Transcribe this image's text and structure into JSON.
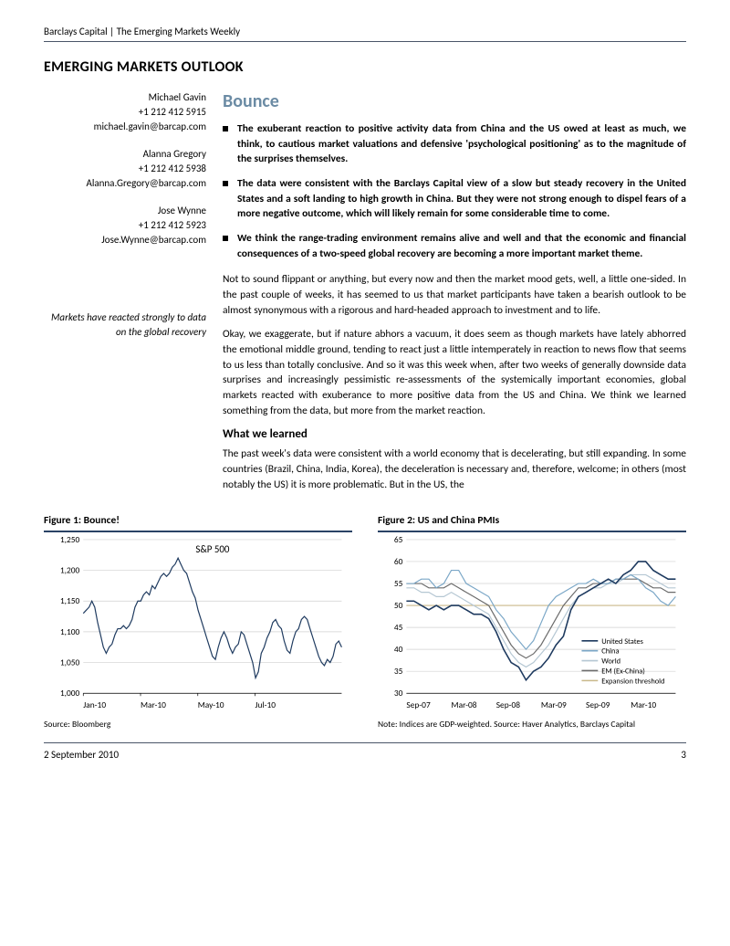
{
  "header": {
    "doc_title": "Barclays Capital | The Emerging Markets Weekly"
  },
  "section": {
    "title": "EMERGING MARKETS OUTLOOK",
    "subtitle": "Bounce"
  },
  "authors": [
    {
      "name": "Michael Gavin",
      "phone": "+1 212 412 5915",
      "email": "michael.gavin@barcap.com"
    },
    {
      "name": "Alanna Gregory",
      "phone": "+1 212 412 5938",
      "email": "Alanna.Gregory@barcap.com"
    },
    {
      "name": "Jose Wynne",
      "phone": "+1 212 412 5923",
      "email": "Jose.Wynne@barcap.com"
    }
  ],
  "side_note": "Markets have reacted strongly to data on the global recovery",
  "bullets": [
    "The exuberant reaction to positive activity data from China and the US owed at least as much, we think, to cautious market valuations and defensive 'psychological positioning' as to the magnitude of the surprises themselves.",
    "The data were consistent with the Barclays Capital view of a slow but steady recovery in the United States and a soft landing to high growth in China. But they were not strong enough to dispel fears of a more negative outcome, which will likely remain for some considerable time to come.",
    "We think the range-trading environment remains alive and well and that the economic and financial consequences of a two-speed global recovery are becoming a more important market theme."
  ],
  "body": {
    "p1": "Not to sound flippant or anything, but every now and then the market mood gets, well, a little one-sided. In the past couple of weeks, it has seemed to us that market participants have taken a bearish outlook to be almost synonymous with a rigorous and hard-headed approach to investment and to life.",
    "p2": "Okay, we exaggerate, but if nature abhors a vacuum, it does seem as though markets have lately abhorred the emotional middle ground, tending to react just a little intemperately in reaction to news flow that seems to us less than totally conclusive. And so it was this week when, after two weeks of generally downside data surprises and increasingly pessimistic re-assessments of the systemically important economies, global markets reacted with exuberance to more positive data from the US and China. We think we learned something from the data, but more from the market reaction.",
    "subhead": "What we learned",
    "p3": "The past week's data were consistent with a world economy that is decelerating, but still expanding. In some countries (Brazil, China, India, Korea), the deceleration is necessary and, therefore, welcome; in others (most notably the US) it is more problematic. But in the US, the"
  },
  "figure1": {
    "title": "Figure 1:  Bounce!",
    "series_label": "S&P 500",
    "type": "line",
    "ylim": [
      1000,
      1250
    ],
    "ytick_step": 50,
    "yticks": [
      "1,000",
      "1,050",
      "1,100",
      "1,150",
      "1,200",
      "1,250"
    ],
    "xticks": [
      "Jan-10",
      "Mar-10",
      "May-10",
      "Jul-10"
    ],
    "line_color": "#1e3a5f",
    "line_width": 1.2,
    "background_color": "#ffffff",
    "grid_color": "#d0d0d0",
    "data": [
      1130,
      1135,
      1140,
      1150,
      1140,
      1115,
      1095,
      1075,
      1065,
      1075,
      1080,
      1095,
      1105,
      1105,
      1110,
      1105,
      1110,
      1120,
      1140,
      1150,
      1150,
      1160,
      1165,
      1160,
      1175,
      1170,
      1180,
      1190,
      1195,
      1190,
      1195,
      1205,
      1210,
      1220,
      1210,
      1200,
      1195,
      1180,
      1165,
      1155,
      1135,
      1120,
      1105,
      1090,
      1075,
      1060,
      1055,
      1075,
      1090,
      1100,
      1090,
      1075,
      1065,
      1075,
      1080,
      1100,
      1095,
      1080,
      1065,
      1050,
      1025,
      1035,
      1065,
      1075,
      1090,
      1100,
      1115,
      1120,
      1110,
      1105,
      1085,
      1070,
      1065,
      1085,
      1100,
      1105,
      1120,
      1125,
      1120,
      1105,
      1090,
      1075,
      1060,
      1050,
      1045,
      1055,
      1050,
      1060,
      1080,
      1085,
      1075
    ],
    "source": "Source: Bloomberg"
  },
  "figure2": {
    "title": "Figure 2: US and China PMIs",
    "type": "line",
    "ylim": [
      30,
      65
    ],
    "ytick_step": 5,
    "yticks": [
      "30",
      "35",
      "40",
      "45",
      "50",
      "55",
      "60",
      "65"
    ],
    "xticks": [
      "Sep-07",
      "Mar-08",
      "Sep-08",
      "Mar-09",
      "Sep-09",
      "Mar-10"
    ],
    "threshold": 50,
    "threshold_color": "#c9b88a",
    "background_color": "#ffffff",
    "grid_color": "#d0d0d0",
    "legend": [
      {
        "label": "United States",
        "color": "#1e3a5f"
      },
      {
        "label": "China",
        "color": "#7ba7c7"
      },
      {
        "label": "World",
        "color": "#b5c7d3"
      },
      {
        "label": "EM (Ex-China)",
        "color": "#6b6b6b"
      },
      {
        "label": "Expansion threshold",
        "color": "#c9b88a"
      }
    ],
    "series": {
      "us": [
        51,
        51,
        50,
        49,
        50,
        49,
        50,
        50,
        49,
        48,
        48,
        47,
        44,
        40,
        37,
        36,
        33,
        35,
        36,
        38,
        41,
        43,
        49,
        52,
        53,
        54,
        55,
        56,
        55,
        57,
        58,
        60,
        60,
        58,
        57,
        56,
        56
      ],
      "china": [
        55,
        55,
        56,
        56,
        54,
        55,
        58,
        58,
        55,
        54,
        53,
        52,
        49,
        47,
        44,
        42,
        40,
        42,
        46,
        50,
        52,
        53,
        54,
        55,
        55,
        56,
        55,
        55,
        56,
        56,
        57,
        56,
        54,
        53,
        51,
        50,
        52
      ],
      "world": [
        54,
        54,
        53,
        53,
        52,
        52,
        53,
        52,
        51,
        50,
        49,
        48,
        45,
        42,
        39,
        37,
        36,
        37,
        39,
        41,
        44,
        47,
        50,
        52,
        53,
        54,
        54,
        55,
        55,
        56,
        57,
        57,
        57,
        56,
        55,
        54,
        54
      ],
      "em": [
        55,
        55,
        55,
        54,
        54,
        54,
        55,
        54,
        53,
        52,
        51,
        50,
        47,
        44,
        41,
        39,
        38,
        39,
        41,
        44,
        47,
        50,
        52,
        54,
        54,
        55,
        55,
        55,
        56,
        56,
        56,
        56,
        55,
        54,
        54,
        53,
        53
      ]
    },
    "source": "Note: Indices are GDP-weighted.  Source: Haver Analytics, Barclays Capital"
  },
  "footer": {
    "date": "2 September 2010",
    "page": "3"
  }
}
